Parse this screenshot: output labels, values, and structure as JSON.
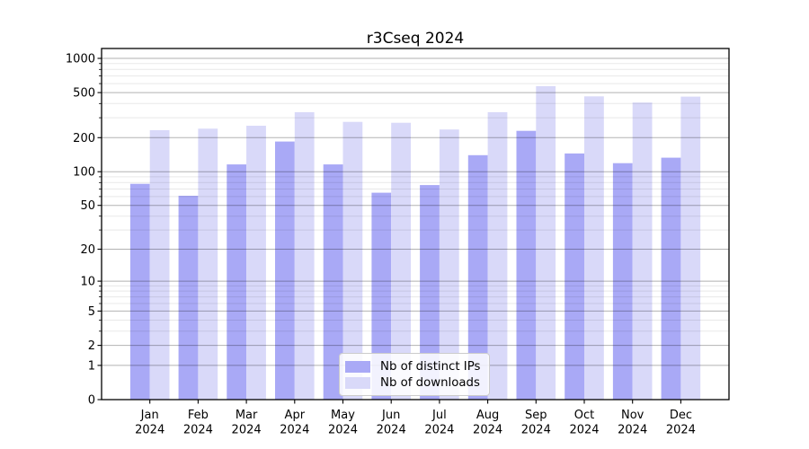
{
  "chart_data": {
    "type": "bar",
    "title": "r3Cseq 2024",
    "months": [
      "Jan",
      "Feb",
      "Mar",
      "Apr",
      "May",
      "Jun",
      "Jul",
      "Aug",
      "Sep",
      "Oct",
      "Nov",
      "Dec"
    ],
    "year_label": "2024",
    "series": [
      {
        "name": "Nb of distinct IPs",
        "color": "#a9a9f6",
        "values": [
          78,
          61,
          116,
          185,
          116,
          65,
          76,
          140,
          230,
          145,
          119,
          133
        ]
      },
      {
        "name": "Nb of downloads",
        "color": "#d9d9f9",
        "values": [
          233,
          240,
          255,
          336,
          276,
          271,
          236,
          336,
          570,
          463,
          408,
          460
        ]
      }
    ],
    "y_axis": {
      "scale": "log1p",
      "ticks": [
        0,
        1,
        2,
        5,
        10,
        20,
        50,
        100,
        200,
        500,
        1000
      ],
      "minor_ticks": [
        3,
        4,
        6,
        7,
        8,
        9,
        30,
        40,
        60,
        70,
        80,
        90,
        300,
        400,
        600,
        700,
        800,
        900
      ],
      "ylim": [
        0,
        1000
      ]
    },
    "xlabel": "",
    "ylabel": "",
    "grid": {
      "major_color": "rgba(0,0,0,0.30)",
      "minor_color": "rgba(0,0,0,0.09)"
    },
    "legend": {
      "position": "lower center"
    }
  }
}
